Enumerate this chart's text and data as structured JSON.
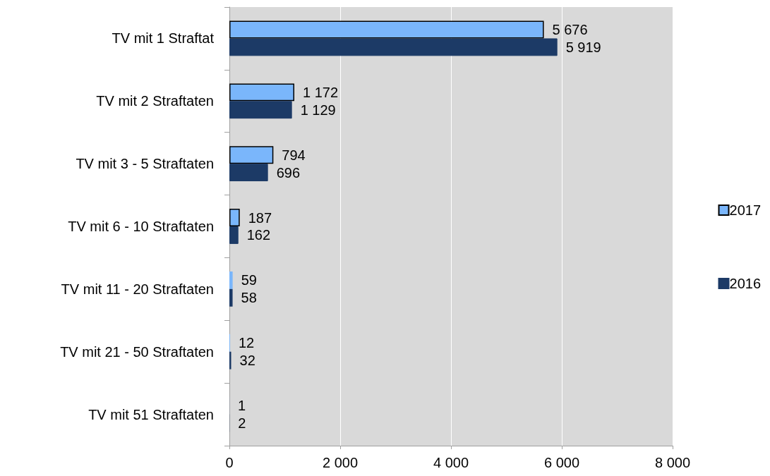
{
  "chart_data": {
    "type": "bar",
    "orientation": "horizontal",
    "categories": [
      "TV mit 1 Straftat",
      "TV mit 2 Straftaten",
      "TV mit 3 - 5 Straftaten",
      "TV mit 6 - 10 Straftaten",
      "TV mit 11 - 20 Straftaten",
      "TV mit 21 - 50 Straftaten",
      "TV mit 51 Straftaten"
    ],
    "series": [
      {
        "name": "2017",
        "color": "#7ab6fb",
        "values": [
          5676,
          1172,
          794,
          187,
          59,
          12,
          1
        ],
        "value_labels": [
          "5 676",
          "1 172",
          "794",
          "187",
          "59",
          "12",
          "1"
        ]
      },
      {
        "name": "2016",
        "color": "#1c3a66",
        "values": [
          5919,
          1129,
          696,
          162,
          58,
          32,
          2
        ],
        "value_labels": [
          "5 919",
          "1 129",
          "696",
          "162",
          "58",
          "32",
          "2"
        ]
      }
    ],
    "xlim": [
      0,
      8000
    ],
    "xticks": [
      0,
      {
        "value": 2000,
        "label": "2 000"
      },
      {
        "value": 4000,
        "label": "4 000"
      },
      {
        "value": 6000,
        "label": "6 000"
      },
      {
        "value": 8000,
        "label": "8 000"
      }
    ],
    "grid": "x",
    "legend": "right"
  }
}
